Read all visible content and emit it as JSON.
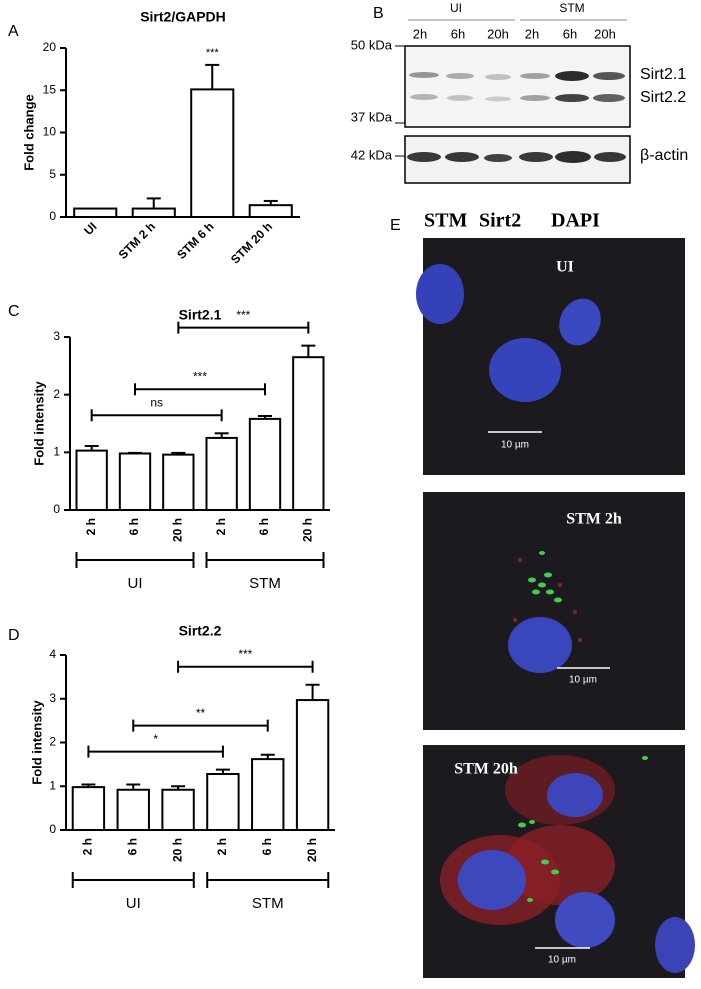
{
  "chart_data": [
    {
      "panel": "A",
      "type": "bar",
      "title": "Sirt2/GAPDH",
      "y_label": "Fold change",
      "categories": [
        "UI",
        "STM 2 h",
        "STM 6 h",
        "STM 20 h"
      ],
      "values": [
        1,
        1,
        15.1,
        1.4
      ],
      "errors": [
        0,
        1.2,
        2.9,
        0.5
      ],
      "annotations": [
        null,
        null,
        "***",
        null
      ],
      "ylim": [
        0,
        20
      ],
      "yticks": [
        0,
        5,
        10,
        15,
        20
      ],
      "color": "#ffffff"
    },
    {
      "panel": "C",
      "type": "bar",
      "title": "Sirt2.1",
      "y_label": "Fold intensity",
      "categories": [
        "2 h",
        "6 h",
        "20 h",
        "2 h",
        "6 h",
        "20 h"
      ],
      "values": [
        1.03,
        0.98,
        0.96,
        1.25,
        1.58,
        2.65
      ],
      "errors": [
        0.08,
        0.01,
        0.03,
        0.08,
        0.05,
        0.2
      ],
      "ylim": [
        0,
        3
      ],
      "yticks": [
        0,
        1,
        2,
        3
      ],
      "color": "#ffffff",
      "comparisons": [
        {
          "from": 0,
          "to": 3,
          "label": "ns"
        },
        {
          "from": 1,
          "to": 4,
          "label": "***"
        },
        {
          "from": 2,
          "to": 5,
          "label": "***"
        }
      ],
      "groups": [
        {
          "name": "UI",
          "from": 0,
          "to": 2
        },
        {
          "name": "STM",
          "from": 3,
          "to": 5
        }
      ]
    },
    {
      "panel": "D",
      "type": "bar",
      "title": "Sirt2.2",
      "y_label": "Fold intensity",
      "categories": [
        "2 h",
        "6 h",
        "20 h",
        "2 h",
        "6 h",
        "20 h"
      ],
      "values": [
        0.98,
        0.92,
        0.92,
        1.28,
        1.62,
        2.97
      ],
      "errors": [
        0.06,
        0.12,
        0.08,
        0.1,
        0.1,
        0.35
      ],
      "ylim": [
        0,
        4
      ],
      "yticks": [
        0,
        1,
        2,
        3,
        4
      ],
      "color": "#ffffff",
      "comparisons": [
        {
          "from": 0,
          "to": 3,
          "label": "*"
        },
        {
          "from": 1,
          "to": 4,
          "label": "**"
        },
        {
          "from": 2,
          "to": 5,
          "label": "***"
        }
      ],
      "groups": [
        {
          "name": "UI",
          "from": 0,
          "to": 2
        },
        {
          "name": "STM",
          "from": 3,
          "to": 5
        }
      ]
    }
  ],
  "blot": {
    "panel": "B",
    "groups": [
      "UI",
      "STM"
    ],
    "lanes": [
      "2h",
      "6h",
      "20h",
      "2h",
      "6h",
      "20h"
    ],
    "markers": [
      "50 kDa",
      "37 kDa",
      "42 kDa"
    ],
    "bands": [
      "Sirt2.1",
      "Sirt2.2",
      "β-actin"
    ]
  },
  "microscopy": {
    "panel": "E",
    "legend": [
      "STM",
      "Sirt2",
      "DAPI"
    ],
    "legend_colors": [
      "#2eb04a",
      "#e2302e",
      "#2f6fb8"
    ],
    "images": [
      "UI",
      "STM 2h",
      "STM 20h"
    ],
    "scale_bar": "10 µm"
  }
}
